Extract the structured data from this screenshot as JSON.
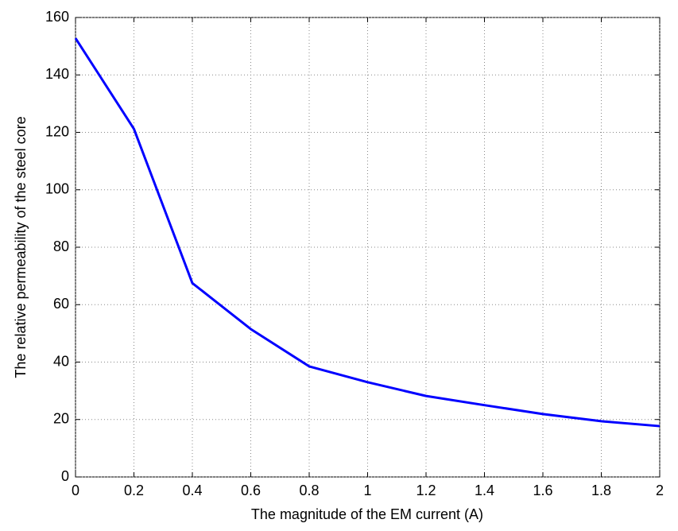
{
  "chart_data": {
    "type": "line",
    "x_label": "The magnitude of the EM current (A)",
    "y_label": "The relative permeability of the steel core",
    "x": [
      0,
      0.2,
      0.4,
      0.6,
      0.8,
      1,
      1.2,
      1.4,
      1.6,
      1.8,
      2
    ],
    "series": [
      {
        "color": "#0000ff",
        "values": [
          152.8,
          121.2,
          67.5,
          51.5,
          38.5,
          33,
          28.2,
          25,
          21.9,
          19.4,
          17.7
        ]
      }
    ],
    "xlim": [
      0,
      2
    ],
    "xticks": [
      0,
      0.2,
      0.4,
      0.6,
      0.8,
      1,
      1.2,
      1.4,
      1.6,
      1.8,
      2
    ],
    "ylim": [
      0,
      160
    ],
    "yticks": [
      0,
      20,
      40,
      60,
      80,
      100,
      120,
      140,
      160
    ],
    "grid": true
  }
}
